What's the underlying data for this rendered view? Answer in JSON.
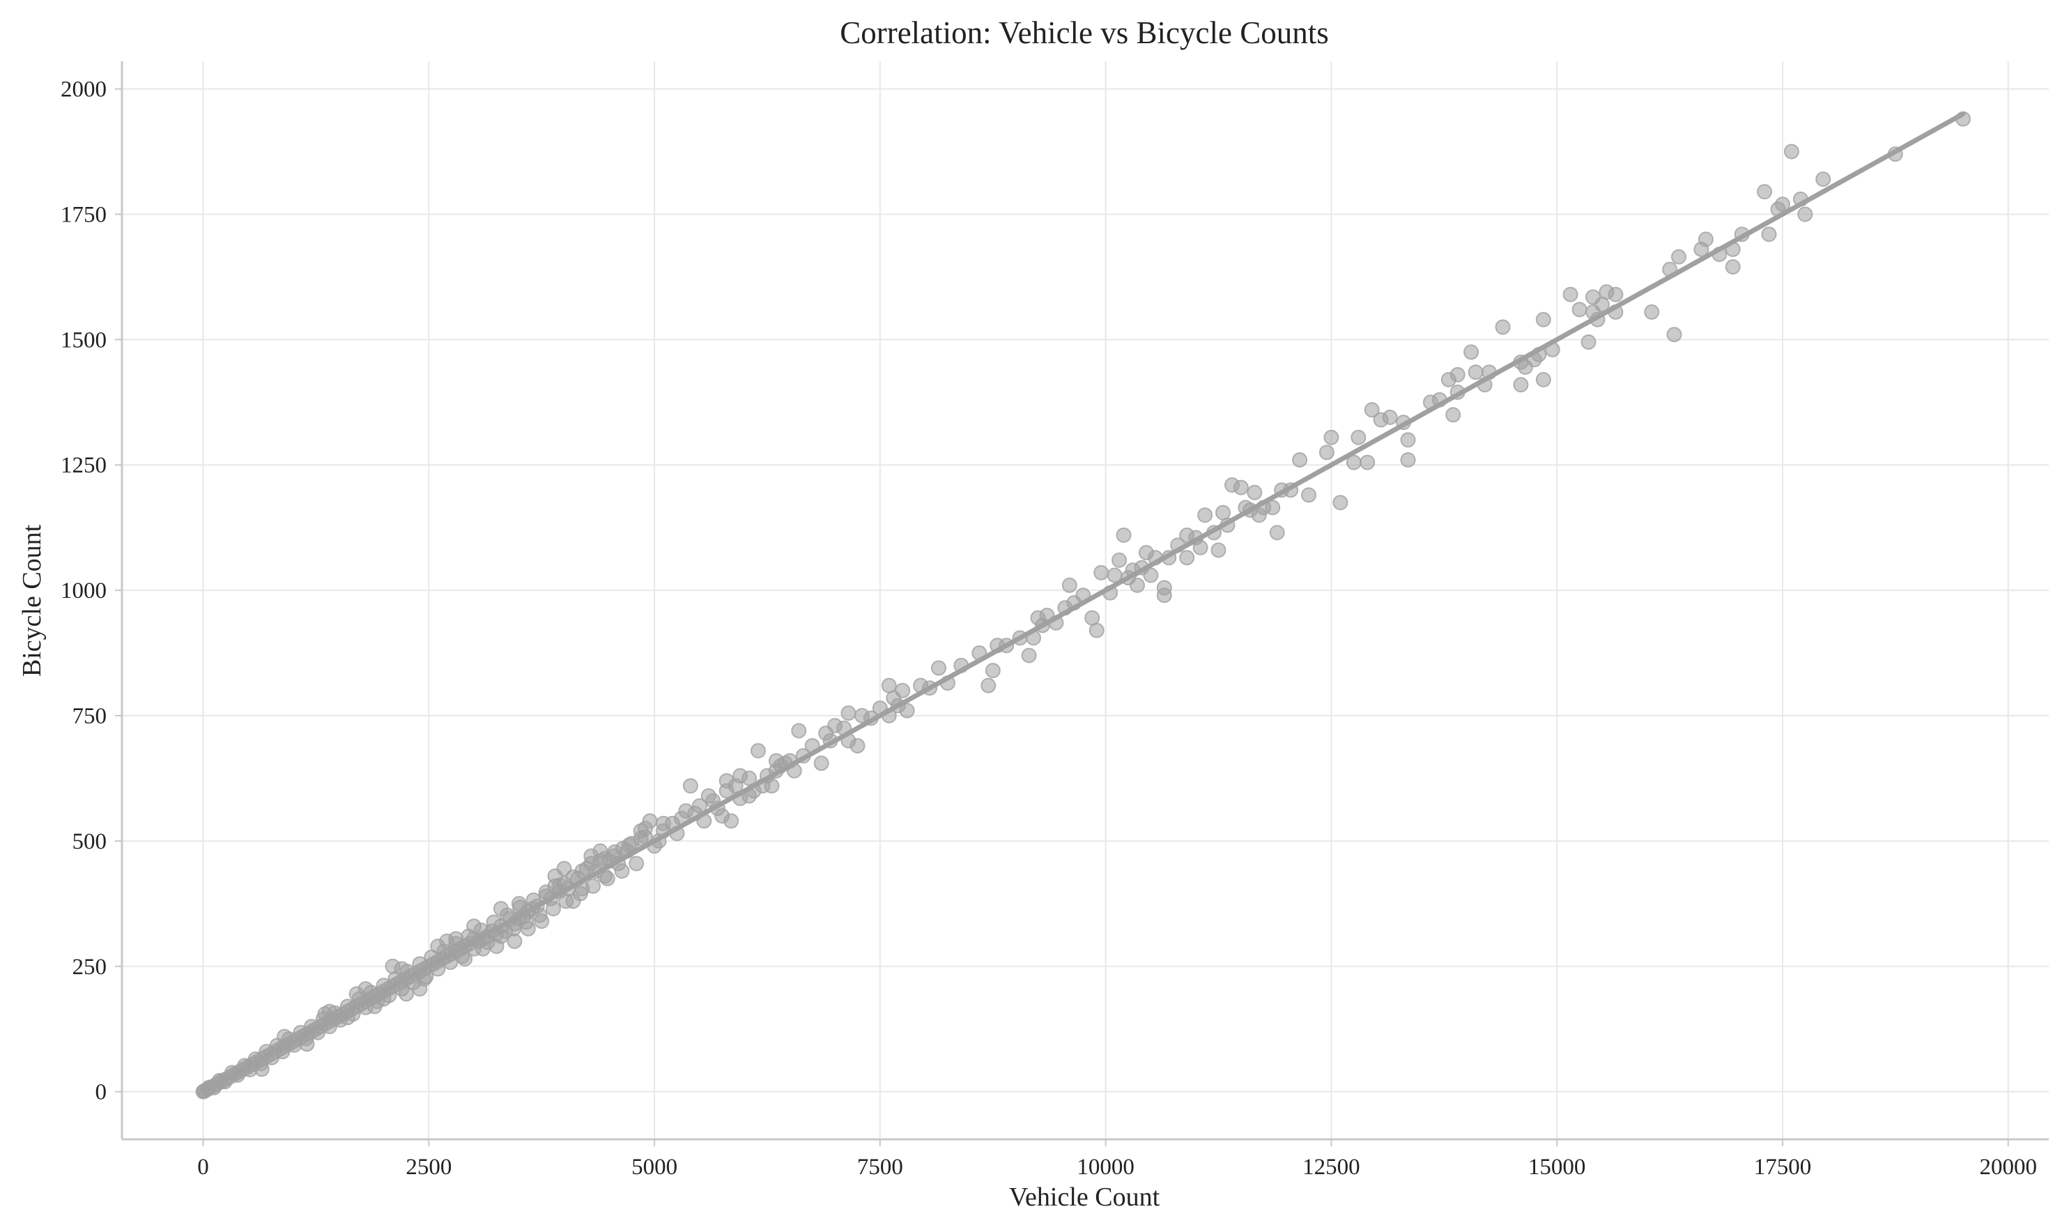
{
  "chart_data": {
    "type": "scatter",
    "title": "Correlation: Vehicle vs Bicycle Counts",
    "xlabel": "Vehicle Count",
    "ylabel": "Bicycle Count",
    "xlim": [
      -900,
      20450
    ],
    "ylim": [
      -95,
      2055
    ],
    "x_ticks": [
      0,
      2500,
      5000,
      7500,
      10000,
      12500,
      15000,
      17500,
      20000
    ],
    "x_tick_labels": [
      "0",
      "2500",
      "5000",
      "7500",
      "10000",
      "12500",
      "15000",
      "17500",
      "20000"
    ],
    "y_ticks": [
      0,
      250,
      500,
      750,
      1000,
      1250,
      1500,
      1750,
      2000
    ],
    "y_tick_labels": [
      "0",
      "250",
      "500",
      "750",
      "1000",
      "1250",
      "1500",
      "1750",
      "2000"
    ],
    "grid": true,
    "point_color": "#a0a0a0",
    "line_color": "#a0a0a0",
    "trend_line": {
      "x": [
        0,
        19500
      ],
      "y": [
        0,
        1950
      ]
    },
    "points": [
      [
        19500,
        1940
      ],
      [
        18750,
        1870
      ],
      [
        17950,
        1820
      ],
      [
        17600,
        1875
      ],
      [
        17700,
        1780
      ],
      [
        17750,
        1750
      ],
      [
        17500,
        1770
      ],
      [
        17450,
        1760
      ],
      [
        17350,
        1710
      ],
      [
        17300,
        1795
      ],
      [
        17050,
        1710
      ],
      [
        16950,
        1680
      ],
      [
        16950,
        1645
      ],
      [
        16800,
        1670
      ],
      [
        16650,
        1700
      ],
      [
        16600,
        1680
      ],
      [
        16350,
        1665
      ],
      [
        16300,
        1510
      ],
      [
        16250,
        1640
      ],
      [
        16050,
        1555
      ],
      [
        15650,
        1590
      ],
      [
        15650,
        1555
      ],
      [
        15550,
        1595
      ],
      [
        15500,
        1570
      ],
      [
        15450,
        1540
      ],
      [
        15400,
        1555
      ],
      [
        15400,
        1585
      ],
      [
        15350,
        1495
      ],
      [
        15250,
        1560
      ],
      [
        15150,
        1590
      ],
      [
        14950,
        1480
      ],
      [
        14850,
        1420
      ],
      [
        14850,
        1540
      ],
      [
        14800,
        1470
      ],
      [
        14750,
        1460
      ],
      [
        14650,
        1445
      ],
      [
        14600,
        1410
      ],
      [
        14600,
        1455
      ],
      [
        14400,
        1525
      ],
      [
        14250,
        1435
      ],
      [
        14200,
        1410
      ],
      [
        14100,
        1435
      ],
      [
        14050,
        1475
      ],
      [
        13900,
        1430
      ],
      [
        13900,
        1395
      ],
      [
        13850,
        1350
      ],
      [
        13800,
        1420
      ],
      [
        13700,
        1380
      ],
      [
        13600,
        1375
      ],
      [
        13350,
        1260
      ],
      [
        13350,
        1300
      ],
      [
        13300,
        1335
      ],
      [
        13150,
        1345
      ],
      [
        13050,
        1340
      ],
      [
        12950,
        1360
      ],
      [
        12900,
        1255
      ],
      [
        12750,
        1255
      ],
      [
        12800,
        1305
      ],
      [
        12600,
        1175
      ],
      [
        12500,
        1305
      ],
      [
        12450,
        1275
      ],
      [
        12250,
        1190
      ],
      [
        12150,
        1260
      ],
      [
        12050,
        1200
      ],
      [
        11950,
        1200
      ],
      [
        11900,
        1115
      ],
      [
        11850,
        1165
      ],
      [
        11750,
        1165
      ],
      [
        11700,
        1150
      ],
      [
        11650,
        1195
      ],
      [
        11600,
        1160
      ],
      [
        11550,
        1165
      ],
      [
        11500,
        1205
      ],
      [
        11400,
        1210
      ],
      [
        11350,
        1130
      ],
      [
        11300,
        1155
      ],
      [
        11250,
        1080
      ],
      [
        11200,
        1115
      ],
      [
        11100,
        1150
      ],
      [
        11050,
        1085
      ],
      [
        11000,
        1105
      ],
      [
        10900,
        1110
      ],
      [
        10900,
        1065
      ],
      [
        10800,
        1090
      ],
      [
        10700,
        1065
      ],
      [
        10650,
        1005
      ],
      [
        10650,
        990
      ],
      [
        10550,
        1065
      ],
      [
        10500,
        1030
      ],
      [
        10450,
        1075
      ],
      [
        10400,
        1045
      ],
      [
        10350,
        1010
      ],
      [
        10300,
        1040
      ],
      [
        10250,
        1025
      ],
      [
        10200,
        1110
      ],
      [
        10150,
        1060
      ],
      [
        10100,
        1030
      ],
      [
        10050,
        995
      ],
      [
        9950,
        1035
      ],
      [
        9900,
        920
      ],
      [
        9850,
        945
      ],
      [
        9750,
        990
      ],
      [
        9650,
        975
      ],
      [
        9600,
        1010
      ],
      [
        9550,
        965
      ],
      [
        9450,
        935
      ],
      [
        9350,
        950
      ],
      [
        9300,
        930
      ],
      [
        9250,
        945
      ],
      [
        9200,
        905
      ],
      [
        9150,
        870
      ],
      [
        9050,
        905
      ],
      [
        8900,
        890
      ],
      [
        8800,
        890
      ],
      [
        8750,
        840
      ],
      [
        8700,
        810
      ],
      [
        8600,
        875
      ],
      [
        8400,
        850
      ],
      [
        8250,
        815
      ],
      [
        8150,
        845
      ],
      [
        8050,
        805
      ],
      [
        7950,
        810
      ],
      [
        7800,
        760
      ],
      [
        7750,
        800
      ],
      [
        7700,
        770
      ],
      [
        7650,
        785
      ],
      [
        7600,
        750
      ],
      [
        7600,
        810
      ],
      [
        7500,
        765
      ],
      [
        7400,
        745
      ],
      [
        7300,
        750
      ],
      [
        7250,
        690
      ],
      [
        7150,
        700
      ],
      [
        7150,
        755
      ],
      [
        7100,
        725
      ],
      [
        7000,
        730
      ],
      [
        6950,
        700
      ],
      [
        6900,
        715
      ],
      [
        6850,
        655
      ],
      [
        6750,
        690
      ],
      [
        6650,
        670
      ],
      [
        6600,
        720
      ],
      [
        6550,
        640
      ],
      [
        6450,
        655
      ],
      [
        6400,
        650
      ],
      [
        6350,
        660
      ],
      [
        6300,
        610
      ],
      [
        6250,
        630
      ],
      [
        6150,
        680
      ],
      [
        6100,
        600
      ],
      [
        6050,
        625
      ],
      [
        5950,
        585
      ],
      [
        5900,
        610
      ],
      [
        5850,
        540
      ],
      [
        5800,
        600
      ],
      [
        5700,
        565
      ],
      [
        5600,
        590
      ],
      [
        5500,
        570
      ],
      [
        5400,
        610
      ],
      [
        5350,
        560
      ],
      [
        5200,
        535
      ],
      [
        5100,
        520
      ],
      [
        4950,
        540
      ],
      [
        4900,
        525
      ],
      [
        4850,
        505
      ],
      [
        4750,
        495
      ],
      [
        4700,
        480
      ],
      [
        4550,
        470
      ],
      [
        4500,
        460
      ],
      [
        4450,
        465
      ],
      [
        4350,
        440
      ],
      [
        4300,
        455
      ],
      [
        4200,
        440
      ],
      [
        4150,
        425
      ],
      [
        4050,
        405
      ],
      [
        4000,
        415
      ],
      [
        3950,
        400
      ],
      [
        3900,
        410
      ],
      [
        3850,
        385
      ],
      [
        3800,
        390
      ],
      [
        3700,
        370
      ],
      [
        3650,
        365
      ],
      [
        3600,
        360
      ],
      [
        3550,
        350
      ],
      [
        3500,
        345
      ],
      [
        3450,
        335
      ],
      [
        3400,
        345
      ],
      [
        3350,
        320
      ],
      [
        3300,
        330
      ],
      [
        3250,
        315
      ],
      [
        3200,
        320
      ],
      [
        3150,
        310
      ],
      [
        3100,
        305
      ],
      [
        3050,
        300
      ],
      [
        3000,
        305
      ],
      [
        2950,
        295
      ],
      [
        2900,
        290
      ],
      [
        2850,
        285
      ],
      [
        2800,
        280
      ],
      [
        2750,
        275
      ],
      [
        2700,
        270
      ],
      [
        2650,
        265
      ],
      [
        2600,
        260
      ],
      [
        2550,
        255
      ],
      [
        2500,
        250
      ],
      [
        2450,
        245
      ],
      [
        2400,
        240
      ],
      [
        2350,
        235
      ],
      [
        2300,
        230
      ],
      [
        2250,
        225
      ],
      [
        2200,
        220
      ],
      [
        2150,
        215
      ],
      [
        2100,
        210
      ],
      [
        2050,
        205
      ],
      [
        2000,
        200
      ],
      [
        1950,
        195
      ],
      [
        1900,
        190
      ],
      [
        1850,
        185
      ],
      [
        1800,
        180
      ],
      [
        1750,
        175
      ],
      [
        1700,
        170
      ],
      [
        1650,
        165
      ],
      [
        1600,
        160
      ],
      [
        1550,
        155
      ],
      [
        1500,
        150
      ],
      [
        1450,
        145
      ],
      [
        1400,
        140
      ],
      [
        1350,
        135
      ],
      [
        1300,
        130
      ],
      [
        1250,
        125
      ],
      [
        1200,
        120
      ],
      [
        1150,
        115
      ],
      [
        1100,
        110
      ],
      [
        1050,
        105
      ],
      [
        1000,
        100
      ],
      [
        950,
        95
      ],
      [
        900,
        90
      ],
      [
        850,
        85
      ],
      [
        800,
        80
      ],
      [
        750,
        75
      ],
      [
        700,
        70
      ],
      [
        650,
        65
      ],
      [
        600,
        60
      ],
      [
        550,
        55
      ],
      [
        500,
        50
      ],
      [
        450,
        45
      ],
      [
        400,
        40
      ],
      [
        350,
        35
      ],
      [
        300,
        30
      ],
      [
        250,
        25
      ],
      [
        200,
        20
      ],
      [
        150,
        15
      ],
      [
        100,
        10
      ],
      [
        50,
        5
      ],
      [
        20,
        2
      ],
      [
        10,
        1
      ],
      [
        0,
        0
      ],
      [
        60,
        8
      ],
      [
        120,
        8
      ],
      [
        180,
        22
      ],
      [
        240,
        20
      ],
      [
        320,
        38
      ],
      [
        380,
        33
      ],
      [
        460,
        52
      ],
      [
        520,
        44
      ],
      [
        580,
        65
      ],
      [
        640,
        56
      ],
      [
        700,
        80
      ],
      [
        760,
        68
      ],
      [
        820,
        92
      ],
      [
        880,
        80
      ],
      [
        950,
        105
      ],
      [
        1010,
        93
      ],
      [
        1080,
        118
      ],
      [
        1140,
        106
      ],
      [
        1200,
        130
      ],
      [
        1270,
        118
      ],
      [
        1330,
        145
      ],
      [
        1400,
        130
      ],
      [
        1460,
        157
      ],
      [
        1520,
        143
      ],
      [
        1600,
        170
      ],
      [
        1660,
        155
      ],
      [
        1730,
        185
      ],
      [
        1800,
        168
      ],
      [
        1860,
        198
      ],
      [
        1930,
        180
      ],
      [
        2000,
        212
      ],
      [
        2060,
        192
      ],
      [
        2130,
        225
      ],
      [
        2200,
        205
      ],
      [
        2260,
        240
      ],
      [
        2330,
        218
      ],
      [
        2400,
        255
      ],
      [
        2470,
        230
      ],
      [
        2530,
        268
      ],
      [
        2600,
        245
      ],
      [
        2670,
        280
      ],
      [
        2740,
        258
      ],
      [
        2800,
        295
      ],
      [
        2870,
        270
      ],
      [
        2940,
        310
      ],
      [
        3000,
        285
      ],
      [
        3080,
        322
      ],
      [
        3150,
        298
      ],
      [
        3220,
        338
      ],
      [
        3300,
        310
      ],
      [
        3370,
        352
      ],
      [
        3440,
        325
      ],
      [
        3510,
        368
      ],
      [
        3580,
        338
      ],
      [
        3660,
        382
      ],
      [
        3730,
        352
      ],
      [
        3800,
        398
      ],
      [
        3880,
        365
      ],
      [
        3950,
        412
      ],
      [
        4020,
        380
      ],
      [
        4100,
        428
      ],
      [
        4180,
        395
      ],
      [
        4250,
        445
      ],
      [
        4320,
        410
      ],
      [
        4400,
        460
      ],
      [
        4480,
        425
      ],
      [
        4560,
        478
      ],
      [
        4640,
        440
      ],
      [
        4720,
        492
      ],
      [
        4800,
        455
      ],
      [
        4900,
        508
      ],
      [
        5000,
        490
      ],
      [
        5100,
        535
      ],
      [
        5250,
        515
      ],
      [
        5450,
        555
      ],
      [
        5550,
        540
      ],
      [
        5650,
        580
      ],
      [
        5750,
        550
      ],
      [
        5950,
        630
      ],
      [
        6050,
        590
      ],
      [
        6200,
        610
      ],
      [
        6350,
        640
      ],
      [
        6500,
        660
      ],
      [
        1700,
        195
      ],
      [
        2100,
        250
      ],
      [
        2600,
        290
      ],
      [
        3300,
        365
      ],
      [
        3900,
        430
      ],
      [
        4300,
        470
      ],
      [
        2400,
        205
      ],
      [
        2900,
        265
      ],
      [
        3600,
        325
      ],
      [
        4100,
        380
      ],
      [
        1400,
        160
      ],
      [
        1900,
        170
      ],
      [
        2250,
        195
      ],
      [
        2800,
        305
      ],
      [
        3100,
        285
      ],
      [
        3450,
        300
      ],
      [
        4450,
        430
      ],
      [
        4650,
        485
      ],
      [
        5300,
        545
      ],
      [
        5800,
        620
      ],
      [
        650,
        45
      ],
      [
        900,
        110
      ],
      [
        1150,
        95
      ],
      [
        1350,
        155
      ],
      [
        1600,
        148
      ],
      [
        1800,
        205
      ],
      [
        2000,
        185
      ],
      [
        2200,
        245
      ],
      [
        2450,
        225
      ],
      [
        2700,
        300
      ],
      [
        3000,
        330
      ],
      [
        3250,
        290
      ],
      [
        3500,
        375
      ],
      [
        3750,
        340
      ],
      [
        4000,
        445
      ],
      [
        4200,
        405
      ],
      [
        4400,
        480
      ],
      [
        4600,
        455
      ],
      [
        4850,
        520
      ],
      [
        5050,
        500
      ]
    ]
  }
}
